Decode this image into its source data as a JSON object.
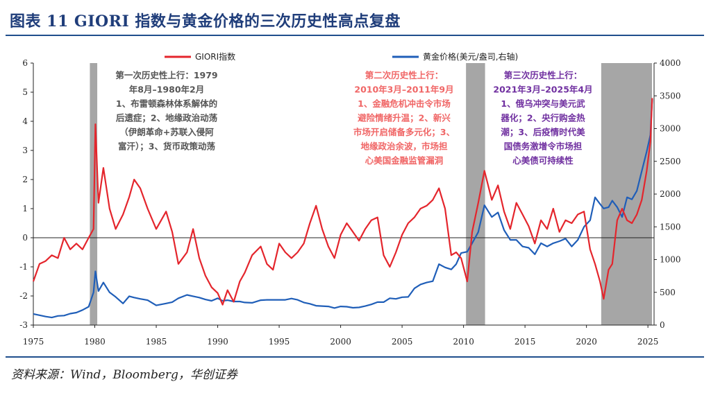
{
  "header": {
    "title": "图表 11 GIORI 指数与黄金价格的三次历史性高点复盘"
  },
  "source": "资料来源：Wind，Bloomberg，华创证券",
  "colors": {
    "giori": "#e4252c",
    "gold": "#1f5eb8",
    "shade": "#a6a6a6",
    "anno1": "#555555",
    "anno2": "#f06666",
    "anno3": "#7030a0",
    "rule": "#1f4e8c"
  },
  "chart_data": {
    "type": "line",
    "xlim": [
      1975,
      2025.5
    ],
    "x_ticks": [
      "1975",
      "1980",
      "1985",
      "1990",
      "1995",
      "2000",
      "2005",
      "2010",
      "2015",
      "2020",
      "2025"
    ],
    "y_left": {
      "lim": [
        -3,
        6
      ],
      "ticks": [
        "6",
        "5",
        "4",
        "3",
        "2",
        "1",
        "0",
        "-1",
        "-2",
        "-3"
      ]
    },
    "y_right": {
      "lim": [
        0,
        4000
      ],
      "ticks": [
        "4000",
        "3500",
        "3000",
        "2500",
        "2000",
        "1500",
        "1000",
        "500",
        "0"
      ]
    },
    "series": [
      {
        "name": "GIORI指数",
        "axis": "left",
        "points": [
          [
            1975.0,
            -1.5
          ],
          [
            1975.5,
            -0.9
          ],
          [
            1976.0,
            -0.8
          ],
          [
            1976.5,
            -0.6
          ],
          [
            1977.0,
            -0.7
          ],
          [
            1977.5,
            0.0
          ],
          [
            1978.0,
            -0.4
          ],
          [
            1978.5,
            -0.2
          ],
          [
            1979.0,
            -0.4
          ],
          [
            1979.5,
            0.0
          ],
          [
            1979.9,
            0.3
          ],
          [
            1980.05,
            3.9
          ],
          [
            1980.3,
            1.2
          ],
          [
            1980.7,
            2.4
          ],
          [
            1981.2,
            1.0
          ],
          [
            1981.7,
            0.3
          ],
          [
            1982.3,
            0.8
          ],
          [
            1982.8,
            1.4
          ],
          [
            1983.2,
            2.0
          ],
          [
            1983.7,
            1.7
          ],
          [
            1984.3,
            1.0
          ],
          [
            1985.0,
            0.3
          ],
          [
            1985.8,
            0.9
          ],
          [
            1986.3,
            0.2
          ],
          [
            1986.8,
            -0.9
          ],
          [
            1987.5,
            -0.5
          ],
          [
            1988.0,
            0.3
          ],
          [
            1988.5,
            -0.7
          ],
          [
            1989.0,
            -1.3
          ],
          [
            1989.5,
            -1.7
          ],
          [
            1990.0,
            -1.9
          ],
          [
            1990.4,
            -2.3
          ],
          [
            1990.8,
            -1.8
          ],
          [
            1991.3,
            -2.2
          ],
          [
            1991.8,
            -1.5
          ],
          [
            1992.2,
            -1.2
          ],
          [
            1992.8,
            -0.6
          ],
          [
            1993.5,
            -0.3
          ],
          [
            1994.0,
            -0.9
          ],
          [
            1994.5,
            -1.1
          ],
          [
            1995.0,
            -0.2
          ],
          [
            1995.5,
            -0.5
          ],
          [
            1996.0,
            -0.7
          ],
          [
            1996.5,
            -0.5
          ],
          [
            1997.0,
            -0.2
          ],
          [
            1997.5,
            0.5
          ],
          [
            1998.0,
            1.1
          ],
          [
            1998.5,
            0.3
          ],
          [
            1999.0,
            -0.3
          ],
          [
            1999.5,
            -0.7
          ],
          [
            2000.0,
            0.1
          ],
          [
            2000.5,
            0.5
          ],
          [
            2001.0,
            0.2
          ],
          [
            2001.5,
            -0.1
          ],
          [
            2002.0,
            0.3
          ],
          [
            2002.5,
            0.6
          ],
          [
            2003.0,
            0.7
          ],
          [
            2003.5,
            -0.6
          ],
          [
            2004.0,
            -1.0
          ],
          [
            2004.5,
            -0.5
          ],
          [
            2005.0,
            0.1
          ],
          [
            2005.5,
            0.5
          ],
          [
            2006.0,
            0.7
          ],
          [
            2006.5,
            1.0
          ],
          [
            2007.0,
            1.1
          ],
          [
            2007.5,
            1.3
          ],
          [
            2008.0,
            1.7
          ],
          [
            2008.5,
            1.0
          ],
          [
            2009.0,
            -0.6
          ],
          [
            2009.4,
            -0.5
          ],
          [
            2009.8,
            -0.7
          ],
          [
            2010.3,
            -1.5
          ],
          [
            2010.7,
            0.2
          ],
          [
            2011.2,
            1.2
          ],
          [
            2011.7,
            2.3
          ],
          [
            2012.3,
            1.3
          ],
          [
            2012.8,
            1.8
          ],
          [
            2013.3,
            0.9
          ],
          [
            2013.8,
            0.3
          ],
          [
            2014.3,
            1.2
          ],
          [
            2014.8,
            0.8
          ],
          [
            2015.3,
            0.4
          ],
          [
            2015.8,
            -0.2
          ],
          [
            2016.3,
            0.6
          ],
          [
            2016.8,
            0.3
          ],
          [
            2017.3,
            1.0
          ],
          [
            2017.8,
            0.2
          ],
          [
            2018.3,
            0.6
          ],
          [
            2018.8,
            0.5
          ],
          [
            2019.3,
            0.8
          ],
          [
            2019.8,
            0.9
          ],
          [
            2020.3,
            -0.4
          ],
          [
            2020.7,
            -0.9
          ],
          [
            2021.1,
            -1.5
          ],
          [
            2021.4,
            -2.1
          ],
          [
            2021.8,
            -1.1
          ],
          [
            2022.1,
            -0.9
          ],
          [
            2022.5,
            0.6
          ],
          [
            2022.9,
            1.0
          ],
          [
            2023.3,
            0.6
          ],
          [
            2023.7,
            0.5
          ],
          [
            2024.1,
            0.8
          ],
          [
            2024.5,
            1.3
          ],
          [
            2024.9,
            2.3
          ],
          [
            2025.2,
            3.3
          ],
          [
            2025.35,
            4.8
          ]
        ]
      },
      {
        "name": "黄金价格(美元/盎司,右轴)",
        "axis": "right",
        "points": [
          [
            1975.0,
            170
          ],
          [
            1975.5,
            150
          ],
          [
            1976.0,
            130
          ],
          [
            1976.5,
            115
          ],
          [
            1977.0,
            140
          ],
          [
            1977.5,
            145
          ],
          [
            1978.0,
            175
          ],
          [
            1978.5,
            190
          ],
          [
            1979.0,
            230
          ],
          [
            1979.5,
            280
          ],
          [
            1979.9,
            500
          ],
          [
            1980.05,
            820
          ],
          [
            1980.3,
            520
          ],
          [
            1980.7,
            650
          ],
          [
            1981.2,
            500
          ],
          [
            1981.7,
            430
          ],
          [
            1982.3,
            330
          ],
          [
            1982.8,
            440
          ],
          [
            1983.2,
            420
          ],
          [
            1983.7,
            400
          ],
          [
            1984.3,
            380
          ],
          [
            1985.0,
            300
          ],
          [
            1985.8,
            330
          ],
          [
            1986.3,
            350
          ],
          [
            1986.8,
            410
          ],
          [
            1987.5,
            460
          ],
          [
            1988.0,
            440
          ],
          [
            1988.5,
            420
          ],
          [
            1989.0,
            390
          ],
          [
            1989.5,
            370
          ],
          [
            1990.0,
            410
          ],
          [
            1990.4,
            370
          ],
          [
            1990.8,
            380
          ],
          [
            1991.3,
            360
          ],
          [
            1991.8,
            360
          ],
          [
            1992.2,
            345
          ],
          [
            1992.8,
            340
          ],
          [
            1993.5,
            380
          ],
          [
            1994.0,
            385
          ],
          [
            1994.5,
            385
          ],
          [
            1995.0,
            385
          ],
          [
            1995.5,
            385
          ],
          [
            1996.0,
            405
          ],
          [
            1996.5,
            385
          ],
          [
            1997.0,
            345
          ],
          [
            1997.5,
            325
          ],
          [
            1998.0,
            295
          ],
          [
            1998.5,
            290
          ],
          [
            1999.0,
            285
          ],
          [
            1999.5,
            260
          ],
          [
            2000.0,
            285
          ],
          [
            2000.5,
            280
          ],
          [
            2001.0,
            265
          ],
          [
            2001.5,
            270
          ],
          [
            2002.0,
            290
          ],
          [
            2002.5,
            315
          ],
          [
            2003.0,
            350
          ],
          [
            2003.5,
            350
          ],
          [
            2004.0,
            410
          ],
          [
            2004.5,
            400
          ],
          [
            2005.0,
            425
          ],
          [
            2005.5,
            430
          ],
          [
            2006.0,
            560
          ],
          [
            2006.5,
            620
          ],
          [
            2007.0,
            650
          ],
          [
            2007.5,
            670
          ],
          [
            2008.0,
            930
          ],
          [
            2008.5,
            880
          ],
          [
            2009.0,
            850
          ],
          [
            2009.4,
            930
          ],
          [
            2009.8,
            1100
          ],
          [
            2010.3,
            1120
          ],
          [
            2010.7,
            1250
          ],
          [
            2011.2,
            1420
          ],
          [
            2011.7,
            1830
          ],
          [
            2012.3,
            1650
          ],
          [
            2012.8,
            1720
          ],
          [
            2013.3,
            1450
          ],
          [
            2013.8,
            1300
          ],
          [
            2014.3,
            1300
          ],
          [
            2014.8,
            1200
          ],
          [
            2015.3,
            1180
          ],
          [
            2015.8,
            1080
          ],
          [
            2016.3,
            1250
          ],
          [
            2016.8,
            1200
          ],
          [
            2017.3,
            1250
          ],
          [
            2017.8,
            1280
          ],
          [
            2018.3,
            1320
          ],
          [
            2018.8,
            1200
          ],
          [
            2019.3,
            1300
          ],
          [
            2019.8,
            1500
          ],
          [
            2020.3,
            1600
          ],
          [
            2020.7,
            1950
          ],
          [
            2021.1,
            1850
          ],
          [
            2021.4,
            1780
          ],
          [
            2021.8,
            1800
          ],
          [
            2022.1,
            1900
          ],
          [
            2022.5,
            1800
          ],
          [
            2022.9,
            1650
          ],
          [
            2023.3,
            1950
          ],
          [
            2023.7,
            1920
          ],
          [
            2024.1,
            2050
          ],
          [
            2024.5,
            2350
          ],
          [
            2024.9,
            2650
          ],
          [
            2025.2,
            2900
          ],
          [
            2025.35,
            3450
          ]
        ]
      }
    ],
    "shaded_periods": [
      [
        1979.6,
        1980.2
      ],
      [
        2010.2,
        2011.75
      ],
      [
        2021.2,
        2025.33
      ]
    ],
    "annotations": [
      {
        "name": "第一次历史性上行",
        "color_key": "anno1",
        "lines": [
          "第一次历史性上行：1979",
          "年8月–1980年2月",
          "1、布雷顿森林体系解体的",
          "后遗症；2、地缘政治动荡",
          "（伊朗革命+苏联入侵阿",
          "富汗）；3、货币政策动荡"
        ]
      },
      {
        "name": "第二次历史性上行",
        "color_key": "anno2",
        "lines": [
          "第二次历史性上行：",
          "2010年3月–2011年9月",
          "1、金融危机冲击令市场",
          "避险情绪升温；2、新兴",
          "市场开启储备多元化；3、",
          "地缘政治余波，市场担",
          "心美国金融监管漏洞"
        ]
      },
      {
        "name": "第三次历史性上行",
        "color_key": "anno3",
        "lines": [
          "第三次历史性上行：",
          "2021年3月–2025年4月",
          "1、俄乌冲突与美元武",
          "器化；2、央行购金热",
          "潮；3、后疫情时代美",
          "国债务激增令市场担",
          "心美债可持续性"
        ]
      }
    ],
    "legend_position": "top",
    "grid": false
  }
}
